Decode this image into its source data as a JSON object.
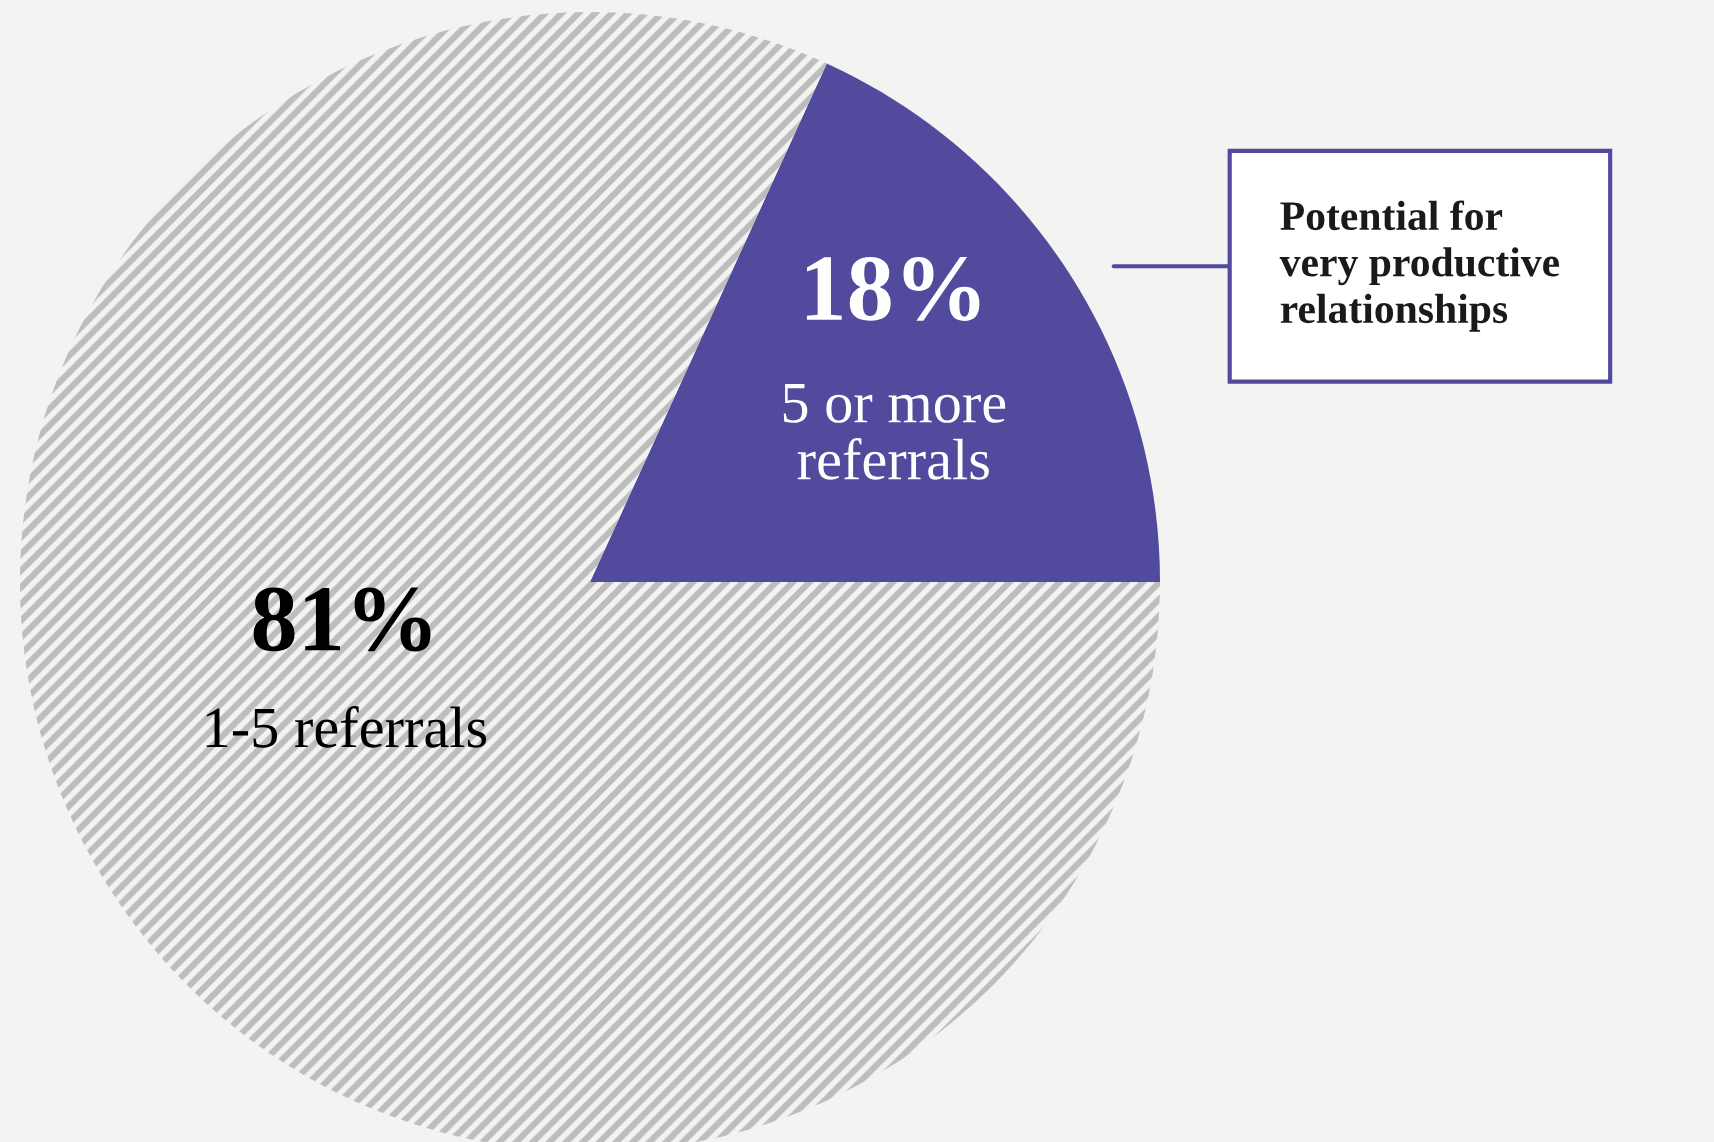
{
  "chart_data": {
    "type": "pie",
    "categories": [
      "5 or more\nreferrals",
      "1-5 referrals"
    ],
    "values": [
      18,
      81
    ],
    "value_labels": [
      "18%",
      "81%"
    ],
    "colors": [
      "#524a9c",
      "#bdbdbd"
    ],
    "annotations": [
      "Potential for\nvery productive\nrelationships"
    ]
  }
}
